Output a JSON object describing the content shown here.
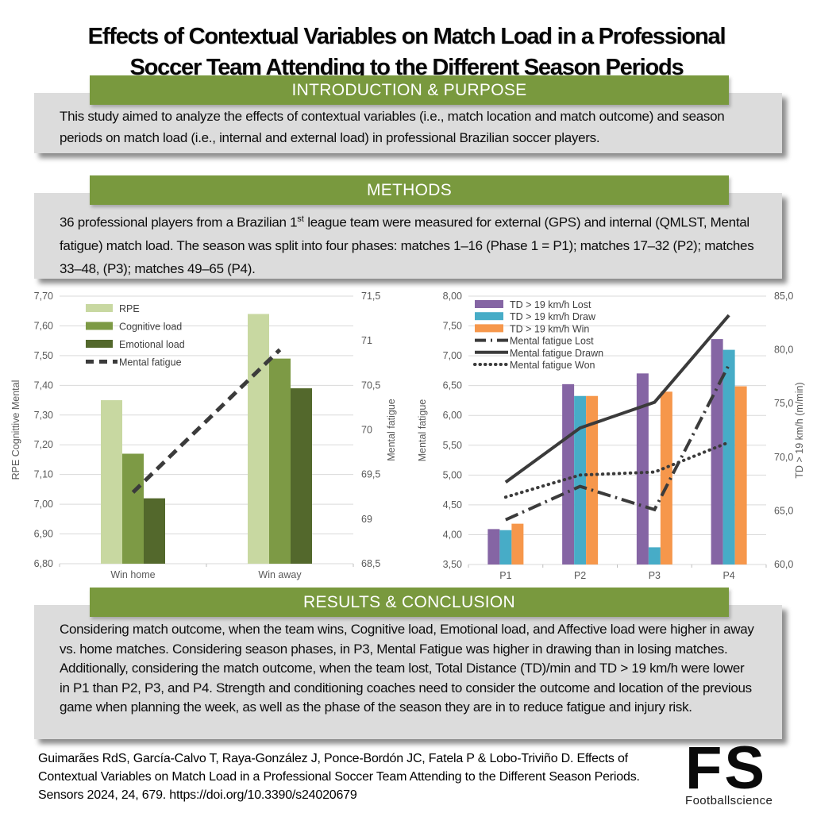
{
  "title": {
    "line1": "Effects of Contextual Variables on Match Load in a Professional",
    "line2": "Soccer Team Attending to the Different Season Periods"
  },
  "sections": {
    "introduction": {
      "heading": "INTRODUCTION & PURPOSE",
      "body": "This study aimed to analyze the effects of contextual variables (i.e., match location and match outcome) and season periods on match load (i.e., internal and external load) in professional Brazilian soccer players."
    },
    "methods": {
      "heading": "METHODS",
      "body_before_sup": "36 professional players from a Brazilian 1",
      "sup": "st",
      "body_after_sup": " league team were measured for external (GPS) and internal (QMLST, Mental fatigue) match load. The season was split into four phases: matches 1–16 (Phase 1 = P1); matches 17–32 (P2); matches 33–48, (P3); matches 49–65 (P4)."
    },
    "results": {
      "heading": "RESULTS & CONCLUSION",
      "body": "Considering match outcome, when the team wins, Cognitive load, Emotional load, and Affective load were higher in away vs. home matches. Considering season phases, in P3, Mental Fatigue was higher in drawing than in losing matches. Additionally, considering the match outcome, when the team lost, Total Distance (TD)/min and TD > 19 km/h were lower in P1 than P2, P3, and P4. Strength and conditioning coaches need to consider the outcome and location of the previous game when planning the week, as well as the phase of the season they are in to reduce fatigue and injury risk."
    }
  },
  "footer": {
    "citation": "Guimarães RdS, García-Calvo T, Raya-González J, Ponce-Bordón JC, Fatela P & Lobo-Triviño D. Effects of Contextual Variables on Match Load in a Professional Soccer Team Attending to the Different Season Periods. Sensors 2024, 24, 679. https://doi.org/10.3390/s24020679",
    "logo_text": "FS",
    "logo_subtext": "Footballscience"
  },
  "colors": {
    "header_green": "#79993E",
    "box_gray": "#DCDCDC",
    "grid": "#D9D9D9",
    "tick_text": "#595959",
    "line_dark": "#3B3B3B"
  },
  "chart_data": [
    {
      "type": "bar",
      "subtype": "bar-line-combo",
      "categories": [
        "Win home",
        "Win away"
      ],
      "bar_series": [
        {
          "name": "RPE",
          "color": "#C8D8A1",
          "axis": "left",
          "values": [
            7.35,
            7.64
          ]
        },
        {
          "name": "Cognitive load",
          "color": "#7D9A45",
          "axis": "left",
          "values": [
            7.17,
            7.49
          ]
        },
        {
          "name": "Emotional load",
          "color": "#53682C",
          "axis": "left",
          "values": [
            7.02,
            7.39
          ]
        }
      ],
      "line_series": [
        {
          "name": "Mental fatigue",
          "color": "#3B3B3B",
          "style": "dashed",
          "axis": "right",
          "values": [
            69.3,
            70.9
          ]
        }
      ],
      "left_axis": {
        "label": "RPE Cognittive Mental",
        "min": 6.8,
        "max": 7.7,
        "step": 0.1,
        "tick_labels": [
          "6,80",
          "6,90",
          "7,00",
          "7,10",
          "7,20",
          "7,30",
          "7,40",
          "7,50",
          "7,60",
          "7,70"
        ]
      },
      "right_axis": {
        "label": "Mental fatigue",
        "min": 68.5,
        "max": 71.5,
        "step": 0.5,
        "tick_labels": [
          "68,5",
          "69",
          "69,5",
          "70",
          "70,5",
          "71",
          "71,5"
        ]
      },
      "grid": true,
      "legend_position": "top-left"
    },
    {
      "type": "bar",
      "subtype": "bar-line-combo",
      "categories": [
        "P1",
        "P2",
        "P3",
        "P4"
      ],
      "bar_series": [
        {
          "name": "TD > 19 km/h Lost",
          "color": "#8565A4",
          "axis": "right",
          "values": [
            63.3,
            76.8,
            77.8,
            81.0
          ]
        },
        {
          "name": "TD > 19 km/h Draw",
          "color": "#47ACC7",
          "axis": "right",
          "values": [
            63.2,
            75.7,
            61.6,
            80.0
          ]
        },
        {
          "name": "TD > 19 km/h Win",
          "color": "#F6974B",
          "axis": "right",
          "values": [
            63.8,
            75.7,
            76.1,
            76.6
          ]
        }
      ],
      "line_series": [
        {
          "name": "Mental fatigue Lost",
          "color": "#3B3B3B",
          "style": "long-dash-dot",
          "axis": "left",
          "values": [
            4.25,
            4.81,
            4.42,
            6.85
          ]
        },
        {
          "name": "Mental fatigue Drawn",
          "color": "#3B3B3B",
          "style": "solid",
          "axis": "left",
          "values": [
            4.88,
            5.79,
            6.22,
            7.68
          ]
        },
        {
          "name": "Mental fatigue Won",
          "color": "#3B3B3B",
          "style": "dotted",
          "axis": "left",
          "values": [
            4.63,
            5.0,
            5.05,
            5.55
          ]
        }
      ],
      "left_axis": {
        "label": "Mental fatigue",
        "min": 3.5,
        "max": 8.0,
        "step": 0.5,
        "tick_labels": [
          "3,50",
          "4,00",
          "4,50",
          "5,00",
          "5,50",
          "6,00",
          "6,50",
          "7,00",
          "7,50",
          "8,00"
        ]
      },
      "right_axis": {
        "label": "TD > 19 km/h (m/min)",
        "min": 60.0,
        "max": 85.0,
        "step": 5.0,
        "tick_labels": [
          "60,0",
          "65,0",
          "70,0",
          "75,0",
          "80,0",
          "85,0"
        ]
      },
      "grid": true,
      "legend_position": "top-left"
    }
  ]
}
